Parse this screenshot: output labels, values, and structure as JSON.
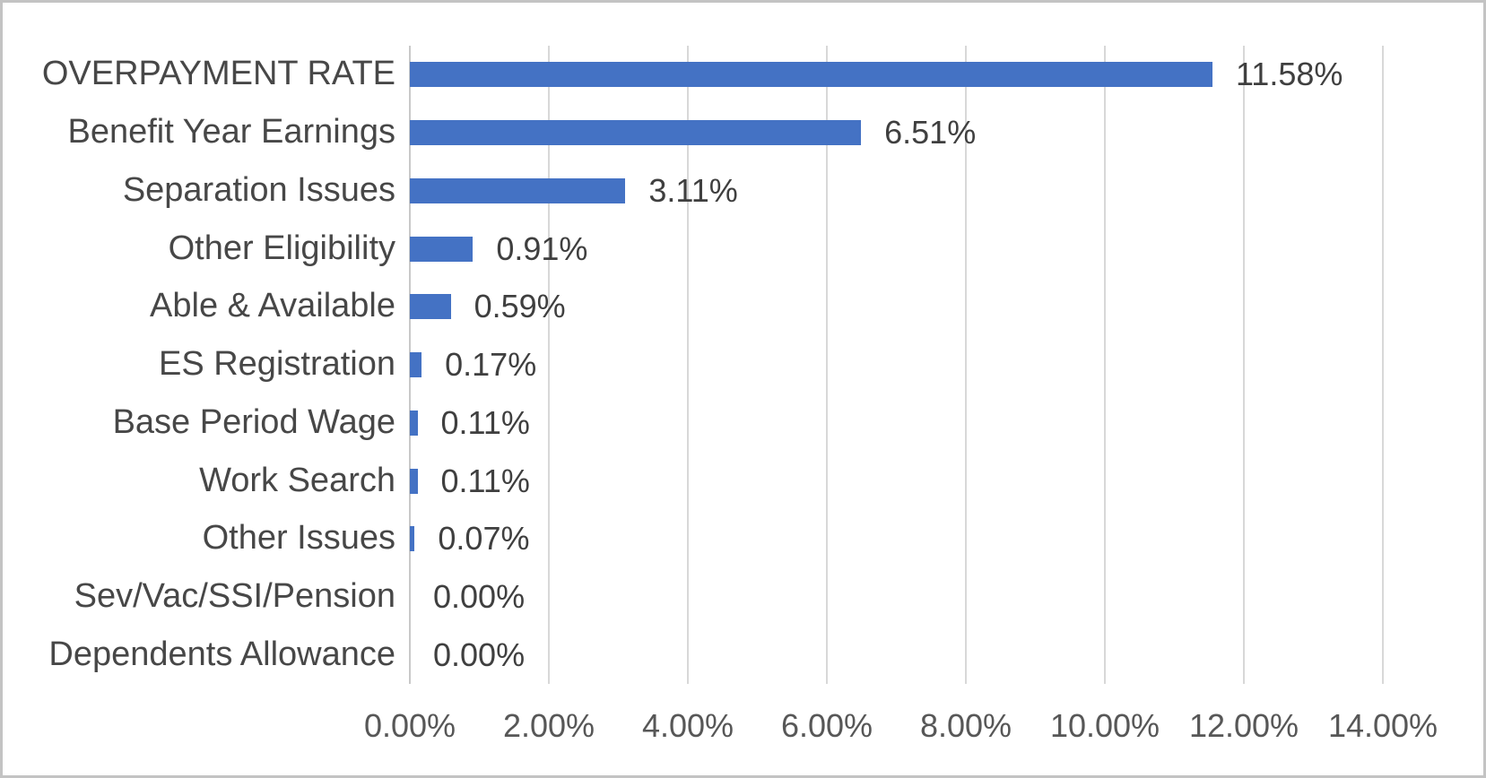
{
  "chart_data": {
    "type": "bar",
    "orientation": "horizontal",
    "title": "",
    "xlabel": "",
    "ylabel": "",
    "categories": [
      "OVERPAYMENT RATE",
      "Benefit Year Earnings",
      "Separation Issues",
      "Other Eligibility",
      "Able & Available",
      "ES Registration",
      "Base Period Wage",
      "Work Search",
      "Other Issues",
      "Sev/Vac/SSI/Pension",
      "Dependents Allowance"
    ],
    "values": [
      11.58,
      6.51,
      3.11,
      0.91,
      0.59,
      0.17,
      0.11,
      0.11,
      0.07,
      0.0,
      0.0
    ],
    "value_labels": [
      "11.58%",
      "6.51%",
      "3.11%",
      "0.91%",
      "0.59%",
      "0.17%",
      "0.11%",
      "0.11%",
      "0.07%",
      "0.00%",
      "0.00%"
    ],
    "x_ticks": [
      "0.00%",
      "2.00%",
      "4.00%",
      "6.00%",
      "8.00%",
      "10.00%",
      "12.00%",
      "14.00%"
    ],
    "xlim": [
      0,
      14
    ],
    "x_tick_step": 2,
    "grid": "vertical gridlines on",
    "legend": "none",
    "colors": {
      "bar": "#4472c4",
      "gridline": "#d8d8d8",
      "axis_line": "#c9c9c9",
      "category_text": "#474747",
      "value_text": "#3f3f3f",
      "tick_text": "#575757",
      "background": "#ffffff"
    }
  }
}
